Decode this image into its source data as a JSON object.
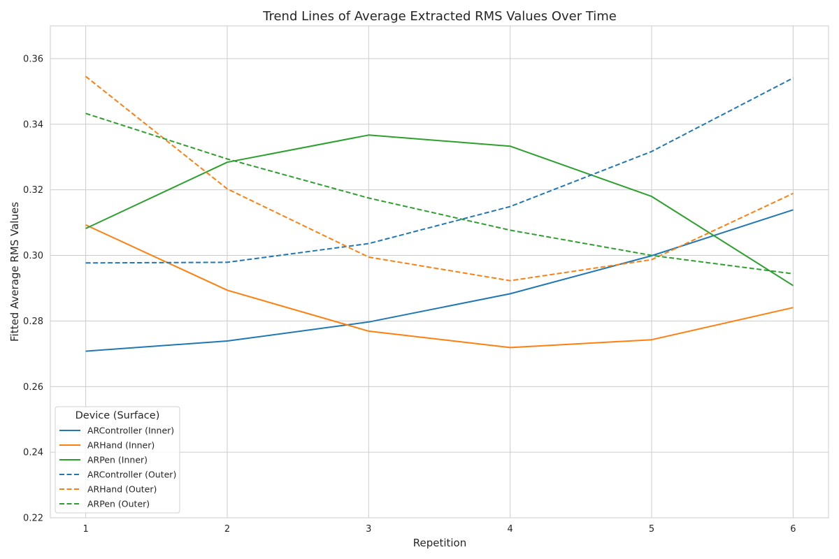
{
  "chart_data": {
    "type": "line",
    "title": "Trend Lines of Average Extracted RMS Values Over Time",
    "xlabel": "Repetition",
    "ylabel": "Fitted Average RMS Values",
    "x": [
      1,
      2,
      3,
      4,
      5,
      6
    ],
    "xlim": [
      0.75,
      6.25
    ],
    "ylim": [
      0.22,
      0.37
    ],
    "yticks": [
      0.22,
      0.24,
      0.26,
      0.28,
      0.3,
      0.32,
      0.34,
      0.36
    ],
    "ytick_labels": [
      "0.22",
      "0.24",
      "0.26",
      "0.28",
      "0.30",
      "0.32",
      "0.34",
      "0.36"
    ],
    "xtick_labels": [
      "1",
      "2",
      "3",
      "4",
      "5",
      "6"
    ],
    "grid": true,
    "legend": {
      "title": "Device (Surface)",
      "placement": "lower-left"
    },
    "series": [
      {
        "name": "ARController (Inner)",
        "color": "#1f77b4",
        "linestyle": "solid",
        "values": [
          0.2708,
          0.2739,
          0.2797,
          0.2883,
          0.2999,
          0.3139
        ]
      },
      {
        "name": "ARHand (Inner)",
        "color": "#ff7f0e",
        "linestyle": "solid",
        "values": [
          0.3093,
          0.2894,
          0.2769,
          0.2719,
          0.2743,
          0.2841
        ]
      },
      {
        "name": "ARPen (Inner)",
        "color": "#2ca02c",
        "linestyle": "solid",
        "values": [
          0.3082,
          0.3284,
          0.3367,
          0.3333,
          0.318,
          0.2908
        ]
      },
      {
        "name": "ARController (Outer)",
        "color": "#1f77b4",
        "linestyle": "dashed",
        "values": [
          0.2977,
          0.2979,
          0.3036,
          0.3149,
          0.3317,
          0.3541
        ]
      },
      {
        "name": "ARHand (Outer)",
        "color": "#ff7f0e",
        "linestyle": "dashed",
        "values": [
          0.3546,
          0.3203,
          0.2995,
          0.2923,
          0.2987,
          0.3189
        ]
      },
      {
        "name": "ARPen (Outer)",
        "color": "#2ca02c",
        "linestyle": "dashed",
        "values": [
          0.3433,
          0.3294,
          0.3175,
          0.3077,
          0.3,
          0.2944
        ]
      }
    ]
  }
}
